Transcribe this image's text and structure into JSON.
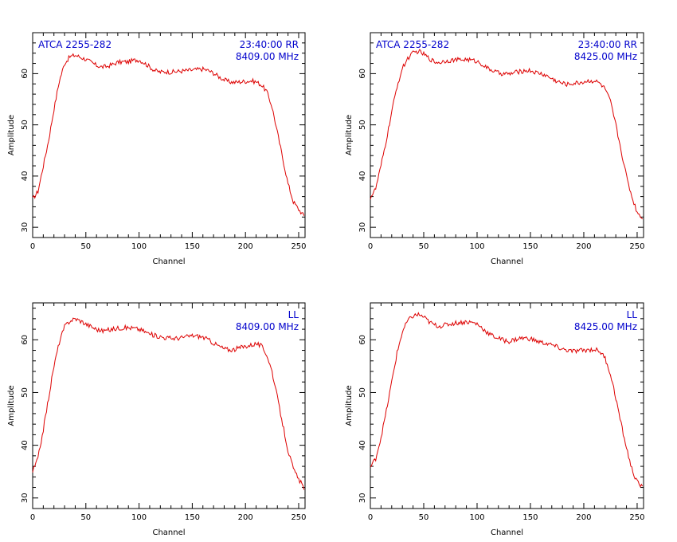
{
  "chart_data": [
    {
      "type": "line",
      "panel": "top-left",
      "title_left": "ATCA 2255-282",
      "title_right": "23:40:00 RR",
      "frequency": "8409.00 MHz",
      "xlabel": "Channel",
      "ylabel": "Amplitude",
      "xlim": [
        0,
        256
      ],
      "ylim": [
        28,
        68
      ],
      "x_ticks": [
        "0",
        "50",
        "100",
        "150",
        "200",
        "250"
      ],
      "y_ticks": [
        "30",
        "40",
        "50",
        "60"
      ],
      "color": "#dd0000",
      "x": [
        0,
        5,
        10,
        15,
        20,
        25,
        30,
        35,
        40,
        45,
        50,
        55,
        60,
        65,
        70,
        75,
        80,
        85,
        90,
        95,
        100,
        105,
        110,
        115,
        120,
        125,
        130,
        135,
        140,
        145,
        150,
        155,
        160,
        165,
        170,
        175,
        180,
        185,
        190,
        195,
        200,
        205,
        210,
        215,
        220,
        225,
        230,
        235,
        240,
        245,
        250,
        255
      ],
      "y": [
        35.5,
        37,
        42,
        47,
        53,
        58.5,
        62,
        63.3,
        63.6,
        63.2,
        62.8,
        62.2,
        61.6,
        61.3,
        61.4,
        61.8,
        62.2,
        62.3,
        62.3,
        62.6,
        62.7,
        62.1,
        61.3,
        60.6,
        60.3,
        60.4,
        60.3,
        60.4,
        60.5,
        60.6,
        60.7,
        60.8,
        60.9,
        60.6,
        60.1,
        59.4,
        58.8,
        58.4,
        58.3,
        58.4,
        58.5,
        58.6,
        58.4,
        57.8,
        56.5,
        53.5,
        48.5,
        43.5,
        38.5,
        35,
        33.5,
        32.2
      ]
    },
    {
      "type": "line",
      "panel": "top-right",
      "title_left": "ATCA 2255-282",
      "title_right": "23:40:00 RR",
      "frequency": "8425.00 MHz",
      "xlabel": "Channel",
      "ylabel": "Amplitude",
      "xlim": [
        0,
        256
      ],
      "ylim": [
        28,
        68
      ],
      "x_ticks": [
        "0",
        "50",
        "100",
        "150",
        "200",
        "250"
      ],
      "y_ticks": [
        "30",
        "40",
        "50",
        "60"
      ],
      "color": "#dd0000",
      "x": [
        0,
        5,
        10,
        15,
        20,
        25,
        30,
        35,
        40,
        45,
        50,
        55,
        60,
        65,
        70,
        75,
        80,
        85,
        90,
        95,
        100,
        105,
        110,
        115,
        120,
        125,
        130,
        135,
        140,
        145,
        150,
        155,
        160,
        165,
        170,
        175,
        180,
        185,
        190,
        195,
        200,
        205,
        210,
        215,
        220,
        225,
        230,
        235,
        240,
        245,
        250,
        255
      ],
      "y": [
        35.8,
        37.5,
        42,
        47,
        52.5,
        57.5,
        61,
        63,
        64,
        64.4,
        63.8,
        63,
        62.3,
        62.2,
        62.5,
        62.6,
        62.7,
        62.7,
        62.8,
        62.6,
        62.4,
        61.8,
        61,
        60.6,
        60.1,
        60,
        59.9,
        60.2,
        60.4,
        60.6,
        60.6,
        60.2,
        60,
        59.6,
        59,
        58.5,
        58.1,
        57.9,
        58.1,
        58.2,
        58.4,
        58.6,
        58.6,
        58.1,
        57,
        54.5,
        50,
        45,
        40,
        36,
        33,
        31.8
      ]
    },
    {
      "type": "line",
      "panel": "bottom-left",
      "title_left": "",
      "title_right": "LL",
      "frequency": "8409.00 MHz",
      "xlabel": "Channel",
      "ylabel": "Amplitude",
      "xlim": [
        0,
        256
      ],
      "ylim": [
        28,
        67
      ],
      "x_ticks": [
        "0",
        "50",
        "100",
        "150",
        "200",
        "250"
      ],
      "y_ticks": [
        "30",
        "40",
        "50",
        "60"
      ],
      "color": "#dd0000",
      "x": [
        0,
        5,
        10,
        15,
        20,
        25,
        30,
        35,
        40,
        45,
        50,
        55,
        60,
        65,
        70,
        75,
        80,
        85,
        90,
        95,
        100,
        105,
        110,
        115,
        120,
        125,
        130,
        135,
        140,
        145,
        150,
        155,
        160,
        165,
        170,
        175,
        180,
        185,
        190,
        195,
        200,
        205,
        210,
        215,
        220,
        225,
        230,
        235,
        240,
        245,
        250,
        255
      ],
      "y": [
        35,
        37.5,
        43,
        49,
        55,
        59.5,
        62.5,
        63.6,
        64,
        63.6,
        63,
        62.5,
        62,
        61.7,
        61.8,
        62,
        62.2,
        62.3,
        62.3,
        62.2,
        62,
        61.6,
        61.1,
        60.8,
        60.6,
        60.4,
        60.3,
        60.3,
        60.4,
        60.6,
        60.8,
        60.7,
        60.5,
        60,
        59.4,
        58.8,
        58.3,
        58.1,
        58.2,
        58.5,
        58.8,
        59,
        59.3,
        58.8,
        57.2,
        54,
        49,
        44,
        39,
        35.5,
        33.5,
        32
      ]
    },
    {
      "type": "line",
      "panel": "bottom-right",
      "title_left": "",
      "title_right": "LL",
      "frequency": "8425.00 MHz",
      "xlabel": "Channel",
      "ylabel": "Amplitude",
      "xlim": [
        0,
        256
      ],
      "ylim": [
        28,
        67
      ],
      "x_ticks": [
        "0",
        "50",
        "100",
        "150",
        "200",
        "250"
      ],
      "y_ticks": [
        "30",
        "40",
        "50",
        "60"
      ],
      "color": "#dd0000",
      "x": [
        0,
        5,
        10,
        15,
        20,
        25,
        30,
        35,
        40,
        45,
        50,
        55,
        60,
        65,
        70,
        75,
        80,
        85,
        90,
        95,
        100,
        105,
        110,
        115,
        120,
        125,
        130,
        135,
        140,
        145,
        150,
        155,
        160,
        165,
        170,
        175,
        180,
        185,
        190,
        195,
        200,
        205,
        210,
        215,
        220,
        225,
        230,
        235,
        240,
        245,
        250,
        255
      ],
      "y": [
        35.8,
        37.5,
        41.5,
        46.5,
        52,
        57.5,
        61.5,
        63.6,
        64.5,
        64.8,
        64.3,
        63.4,
        62.8,
        62.6,
        62.8,
        63,
        63.2,
        63.3,
        63.4,
        63.3,
        63,
        62.2,
        61.3,
        60.7,
        60.3,
        59.9,
        59.7,
        60,
        60.3,
        60.3,
        60.2,
        59.8,
        59.5,
        59.3,
        59,
        58.6,
        58.2,
        58,
        57.8,
        57.9,
        58,
        58.1,
        58.2,
        57.8,
        56.5,
        53.5,
        49,
        44,
        39.5,
        35.5,
        33,
        32
      ]
    }
  ]
}
